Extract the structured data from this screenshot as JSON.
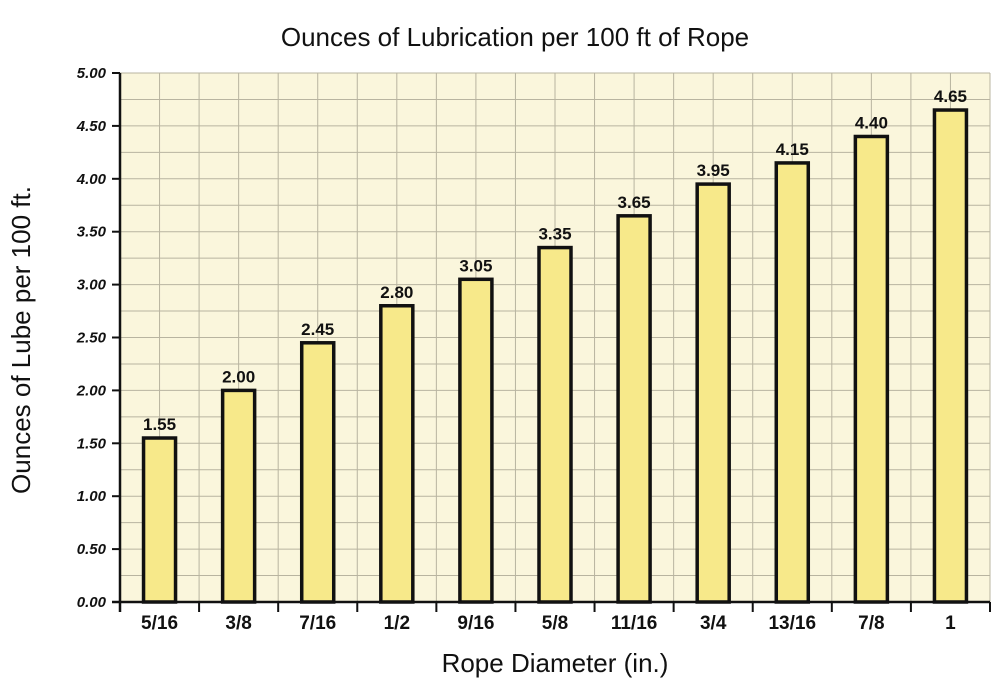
{
  "chart_data": {
    "type": "bar",
    "title": "Ounces of Lubrication per 100 ft of Rope",
    "xlabel": "Rope Diameter (in.)",
    "ylabel": "Ounces of Lube per 100 ft.",
    "categories": [
      "5/16",
      "3/8",
      "7/16",
      "1/2",
      "9/16",
      "5/8",
      "11/16",
      "3/4",
      "13/16",
      "7/8",
      "1"
    ],
    "values": [
      1.55,
      2.0,
      2.45,
      2.8,
      3.05,
      3.35,
      3.65,
      3.95,
      4.15,
      4.4,
      4.65
    ],
    "data_labels": [
      "1.55",
      "2.00",
      "2.45",
      "2.80",
      "3.05",
      "3.35",
      "3.65",
      "3.95",
      "4.15",
      "4.40",
      "4.65"
    ],
    "ylim": [
      0,
      5
    ],
    "yticks": [
      "0.00",
      "0.50",
      "1.00",
      "1.50",
      "2.00",
      "2.50",
      "3.00",
      "3.50",
      "4.00",
      "4.50",
      "5.00"
    ],
    "grid": true,
    "colors": {
      "bar_fill": "#f7e98a",
      "bar_stroke": "#111111",
      "plot_bg": "#faf6dc",
      "grid": "#b8b4a0"
    }
  }
}
